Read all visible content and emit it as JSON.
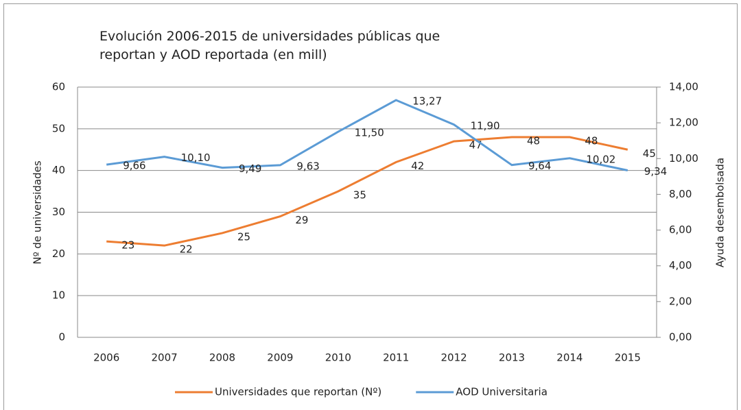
{
  "chart_data": {
    "type": "line",
    "title": "Evolución 2006-2015 de universidades públicas que reportan y AOD reportada (en mill)",
    "ylabel": "Nº de universidades",
    "y2label": "Ayuda desembolsada",
    "categories": [
      "2006",
      "2007",
      "2008",
      "2009",
      "2010",
      "2011",
      "2012",
      "2013",
      "2014",
      "2015"
    ],
    "series": [
      {
        "name": "Universidades que reportan (Nº)",
        "color": "#ed7d31",
        "values": [
          23,
          22,
          25,
          29,
          35,
          42,
          47,
          48,
          48,
          45
        ]
      },
      {
        "name": "AOD Universitaria",
        "color": "#5b9bd5",
        "axis": "y2",
        "values": [
          9.66,
          10.1,
          9.49,
          9.63,
          11.5,
          13.27,
          11.9,
          9.64,
          10.02,
          9.34
        ],
        "value_labels": [
          "9,66",
          "10,10",
          "9,49",
          "9,63",
          "11,50",
          "13,27",
          "11,90",
          "9,64",
          "10,02",
          "9,34"
        ]
      }
    ],
    "ylim": [
      0,
      60
    ],
    "yticks": [
      0,
      10,
      20,
      30,
      40,
      50,
      60
    ],
    "y2lim": [
      0,
      14
    ],
    "y2ticks": [
      {
        "value": 0,
        "label": "0,00"
      },
      {
        "value": 2,
        "label": "2,00"
      },
      {
        "value": 4,
        "label": "4,00"
      },
      {
        "value": 6,
        "label": "6,00"
      },
      {
        "value": 8,
        "label": "8,00"
      },
      {
        "value": 10,
        "label": "10,00"
      },
      {
        "value": 12,
        "label": "12,00"
      },
      {
        "value": 14,
        "label": "14,00"
      }
    ],
    "grid": true,
    "legend": "bottom"
  }
}
